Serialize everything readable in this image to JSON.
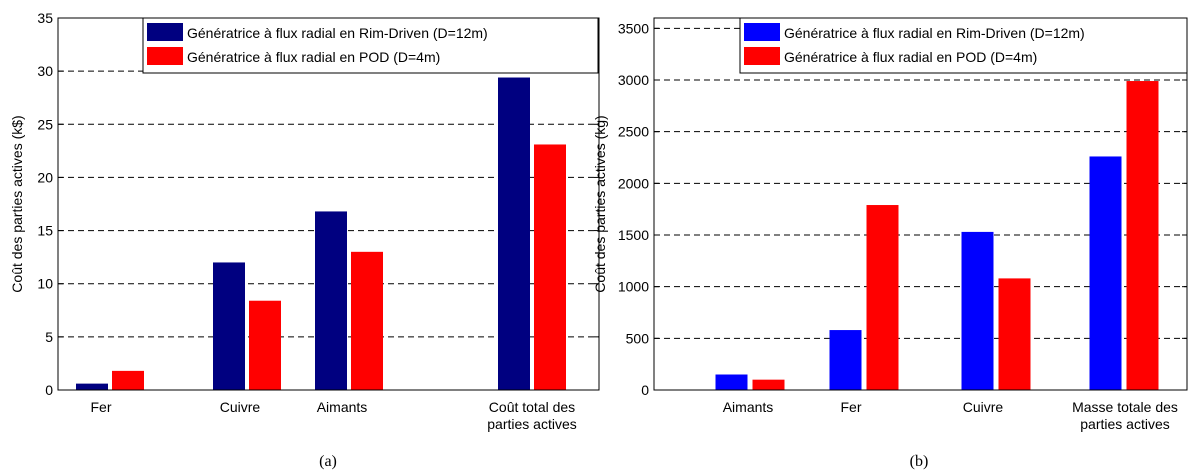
{
  "chart_data": [
    {
      "type": "bar",
      "caption": "(a)",
      "ylabel": "Coût des parties actives (k$)",
      "ylim": [
        0,
        35
      ],
      "yticks": [
        0,
        5,
        10,
        15,
        20,
        25,
        30,
        35
      ],
      "grid": "horizontal-dashed",
      "legend_position": "top-right",
      "categories": [
        [
          "Fer"
        ],
        [
          "Cuivre"
        ],
        [
          "Aimants"
        ],
        [
          "Coût total des",
          "parties actives"
        ]
      ],
      "series": [
        {
          "name": "Génératrice à flux radial en Rim-Driven (D=12m)",
          "color": "#000080",
          "values": [
            0.6,
            12.0,
            16.8,
            29.4
          ]
        },
        {
          "name": "Génératrice à flux radial en POD (D=4m)",
          "color": "#ff0000",
          "values": [
            1.8,
            8.4,
            13.0,
            23.1
          ]
        }
      ]
    },
    {
      "type": "bar",
      "caption": "(b)",
      "ylabel": "Coût des parties actives (kg)",
      "ylim": [
        0,
        3600
      ],
      "yticks": [
        0,
        500,
        1000,
        1500,
        2000,
        2500,
        3000,
        3500
      ],
      "grid": "horizontal-dashed",
      "legend_position": "top-right",
      "categories": [
        [
          "Aimants"
        ],
        [
          "Fer"
        ],
        [
          "Cuivre"
        ],
        [
          "Masse totale des",
          "parties actives"
        ]
      ],
      "series": [
        {
          "name": "Génératrice à flux radial en Rim-Driven (D=12m)",
          "color": "#0000ff",
          "values": [
            150,
            580,
            1530,
            2260
          ]
        },
        {
          "name": "Génératrice à flux radial en POD (D=4m)",
          "color": "#ff0000",
          "values": [
            100,
            1790,
            1080,
            2990
          ]
        }
      ]
    }
  ]
}
